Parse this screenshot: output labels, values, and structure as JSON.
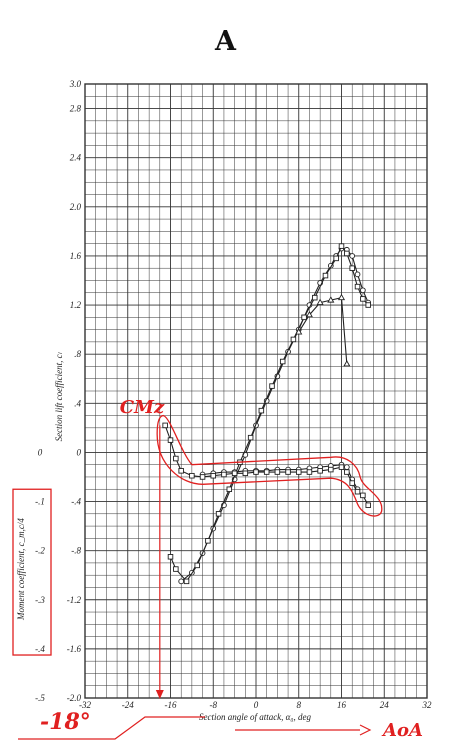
{
  "panel_label": "A",
  "colors": {
    "grid": "#333333",
    "curve": "#222222",
    "annotation": "#e02020"
  },
  "chart_data": {
    "type": "line",
    "x_axis": {
      "label": "Section angle of attack, α₀, deg",
      "range": [
        -32,
        32
      ],
      "ticks": [
        {
          "v": -32,
          "label": "-32"
        },
        {
          "v": -24,
          "label": "-24"
        },
        {
          "v": -16,
          "label": "-16"
        },
        {
          "v": -8,
          "label": "-8"
        },
        {
          "v": 0,
          "label": "0"
        },
        {
          "v": 8,
          "label": "8"
        },
        {
          "v": 16,
          "label": "16"
        },
        {
          "v": 24,
          "label": "24"
        },
        {
          "v": 32,
          "label": "32"
        }
      ]
    },
    "y_axis": {
      "label": "Section lift coefficient, cₗ",
      "range": [
        -2.0,
        3.0
      ],
      "ticks": [
        {
          "v": 3.0,
          "label": "3.0"
        },
        {
          "v": 2.8,
          "label": "2.8"
        },
        {
          "v": 2.4,
          "label": "2.4"
        },
        {
          "v": 2.0,
          "label": "2.0"
        },
        {
          "v": 1.6,
          "label": "1.6"
        },
        {
          "v": 1.2,
          "label": "1.2"
        },
        {
          "v": 0.8,
          "label": ".8"
        },
        {
          "v": 0.4,
          "label": ".4"
        },
        {
          "v": 0.0,
          "label": "0"
        },
        {
          "v": -0.4,
          "label": "-.4"
        },
        {
          "v": -0.8,
          "label": "-.8"
        },
        {
          "v": -1.2,
          "label": "-1.2"
        },
        {
          "v": -1.6,
          "label": "-1.6"
        },
        {
          "v": -2.0,
          "label": "-2.0"
        }
      ]
    },
    "moment_axis": {
      "label": "Moment coefficient, c_m,c/4",
      "ticks": [
        {
          "at_cl": 0.0,
          "label": "0"
        },
        {
          "at_cl": -0.4,
          "label": "-.1"
        },
        {
          "at_cl": -0.8,
          "label": "-.2"
        },
        {
          "at_cl": -1.2,
          "label": "-.3"
        },
        {
          "at_cl": -1.6,
          "label": "-.4"
        },
        {
          "at_cl": -2.0,
          "label": "-.5"
        }
      ]
    },
    "grid": true,
    "series": [
      {
        "id": "lift",
        "marker": "circle",
        "points": [
          [
            -14,
            -1.05
          ],
          [
            -12,
            -0.98
          ],
          [
            -10,
            -0.82
          ],
          [
            -8,
            -0.62
          ],
          [
            -6,
            -0.43
          ],
          [
            -4,
            -0.22
          ],
          [
            -2,
            -0.02
          ],
          [
            0,
            0.22
          ],
          [
            2,
            0.42
          ],
          [
            4,
            0.62
          ],
          [
            6,
            0.82
          ],
          [
            8,
            1.0
          ],
          [
            10,
            1.2
          ],
          [
            12,
            1.38
          ],
          [
            14,
            1.52
          ],
          [
            15,
            1.6
          ],
          [
            16,
            1.66
          ],
          [
            17,
            1.65
          ],
          [
            18,
            1.6
          ],
          [
            19,
            1.45
          ],
          [
            20,
            1.32
          ],
          [
            21,
            1.22
          ]
        ]
      },
      {
        "id": "lift-square",
        "marker": "square",
        "points": [
          [
            -16,
            -0.85
          ],
          [
            -15,
            -0.95
          ],
          [
            -13,
            -1.05
          ],
          [
            -11,
            -0.92
          ],
          [
            -9,
            -0.72
          ],
          [
            -7,
            -0.5
          ],
          [
            -5,
            -0.3
          ],
          [
            -3,
            -0.08
          ],
          [
            -1,
            0.12
          ],
          [
            1,
            0.34
          ],
          [
            3,
            0.54
          ],
          [
            5,
            0.74
          ],
          [
            7,
            0.92
          ],
          [
            9,
            1.1
          ],
          [
            11,
            1.26
          ],
          [
            13,
            1.44
          ],
          [
            15,
            1.58
          ],
          [
            16,
            1.68
          ],
          [
            17,
            1.62
          ],
          [
            18,
            1.5
          ],
          [
            19,
            1.35
          ],
          [
            20,
            1.25
          ],
          [
            21,
            1.2
          ]
        ]
      },
      {
        "id": "lift-triangle",
        "marker": "triangle",
        "points": [
          [
            8,
            0.98
          ],
          [
            10,
            1.12
          ],
          [
            12,
            1.22
          ],
          [
            14,
            1.24
          ],
          [
            16,
            1.26
          ],
          [
            17,
            0.72
          ]
        ]
      },
      {
        "id": "moment",
        "marker": "circle",
        "points": [
          [
            -10,
            -0.18
          ],
          [
            -8,
            -0.17
          ],
          [
            -6,
            -0.16
          ],
          [
            -4,
            -0.16
          ],
          [
            -2,
            -0.15
          ],
          [
            0,
            -0.15
          ],
          [
            2,
            -0.15
          ],
          [
            4,
            -0.14
          ],
          [
            6,
            -0.14
          ],
          [
            8,
            -0.14
          ],
          [
            10,
            -0.13
          ],
          [
            12,
            -0.12
          ],
          [
            14,
            -0.11
          ],
          [
            16,
            -0.1
          ],
          [
            17,
            -0.12
          ],
          [
            18,
            -0.22
          ],
          [
            19,
            -0.3
          ]
        ]
      },
      {
        "id": "moment-square",
        "marker": "square",
        "points": [
          [
            -17,
            0.22
          ],
          [
            -16,
            0.1
          ],
          [
            -15,
            -0.05
          ],
          [
            -14,
            -0.15
          ],
          [
            -12,
            -0.19
          ],
          [
            -10,
            -0.2
          ],
          [
            -8,
            -0.19
          ],
          [
            -6,
            -0.18
          ],
          [
            -4,
            -0.17
          ],
          [
            -2,
            -0.17
          ],
          [
            0,
            -0.16
          ],
          [
            2,
            -0.16
          ],
          [
            4,
            -0.16
          ],
          [
            6,
            -0.16
          ],
          [
            8,
            -0.16
          ],
          [
            10,
            -0.16
          ],
          [
            12,
            -0.15
          ],
          [
            14,
            -0.14
          ],
          [
            16,
            -0.12
          ],
          [
            17,
            -0.16
          ],
          [
            18,
            -0.25
          ],
          [
            19,
            -0.32
          ],
          [
            20,
            -0.35
          ],
          [
            21,
            -0.43
          ]
        ]
      }
    ],
    "annotations": {
      "cmz_label": "CMz",
      "aoa_label": "AoA",
      "minus18_label": "-18°",
      "minus18_x": -18
    }
  }
}
